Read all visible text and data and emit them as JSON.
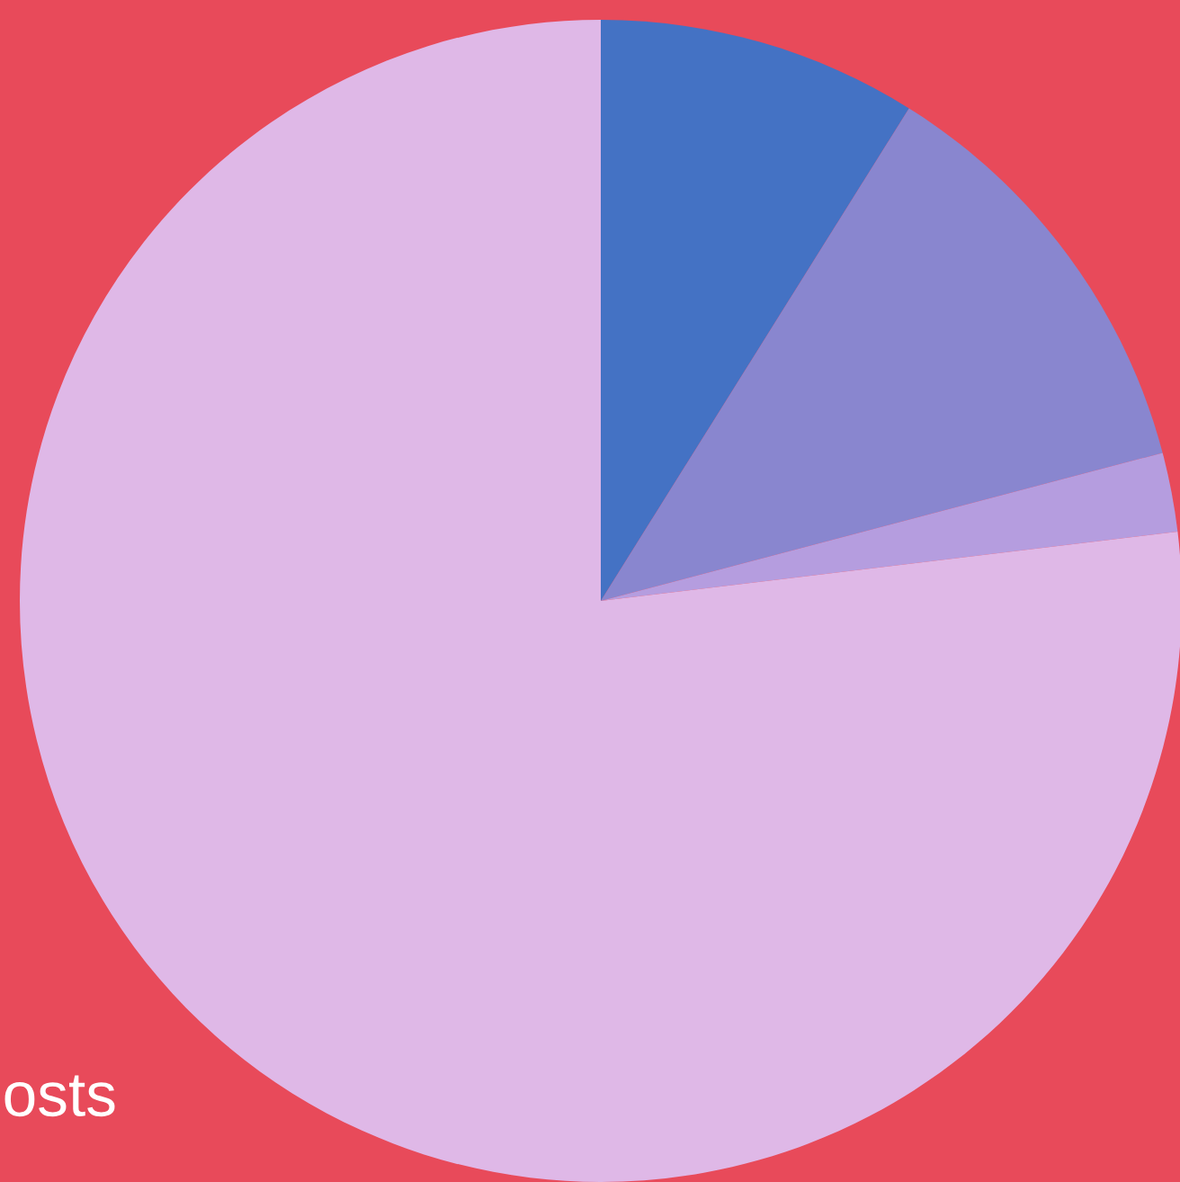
{
  "chart_data": {
    "type": "pie",
    "categories": [
      null,
      null,
      null,
      null
    ],
    "values": [
      8.9,
      12.0,
      2.2,
      76.9
    ],
    "colors": [
      "#4472c4",
      "#8986cf",
      "#b59ddf",
      "#dfb8e7"
    ],
    "annotations": [
      "osts"
    ]
  }
}
